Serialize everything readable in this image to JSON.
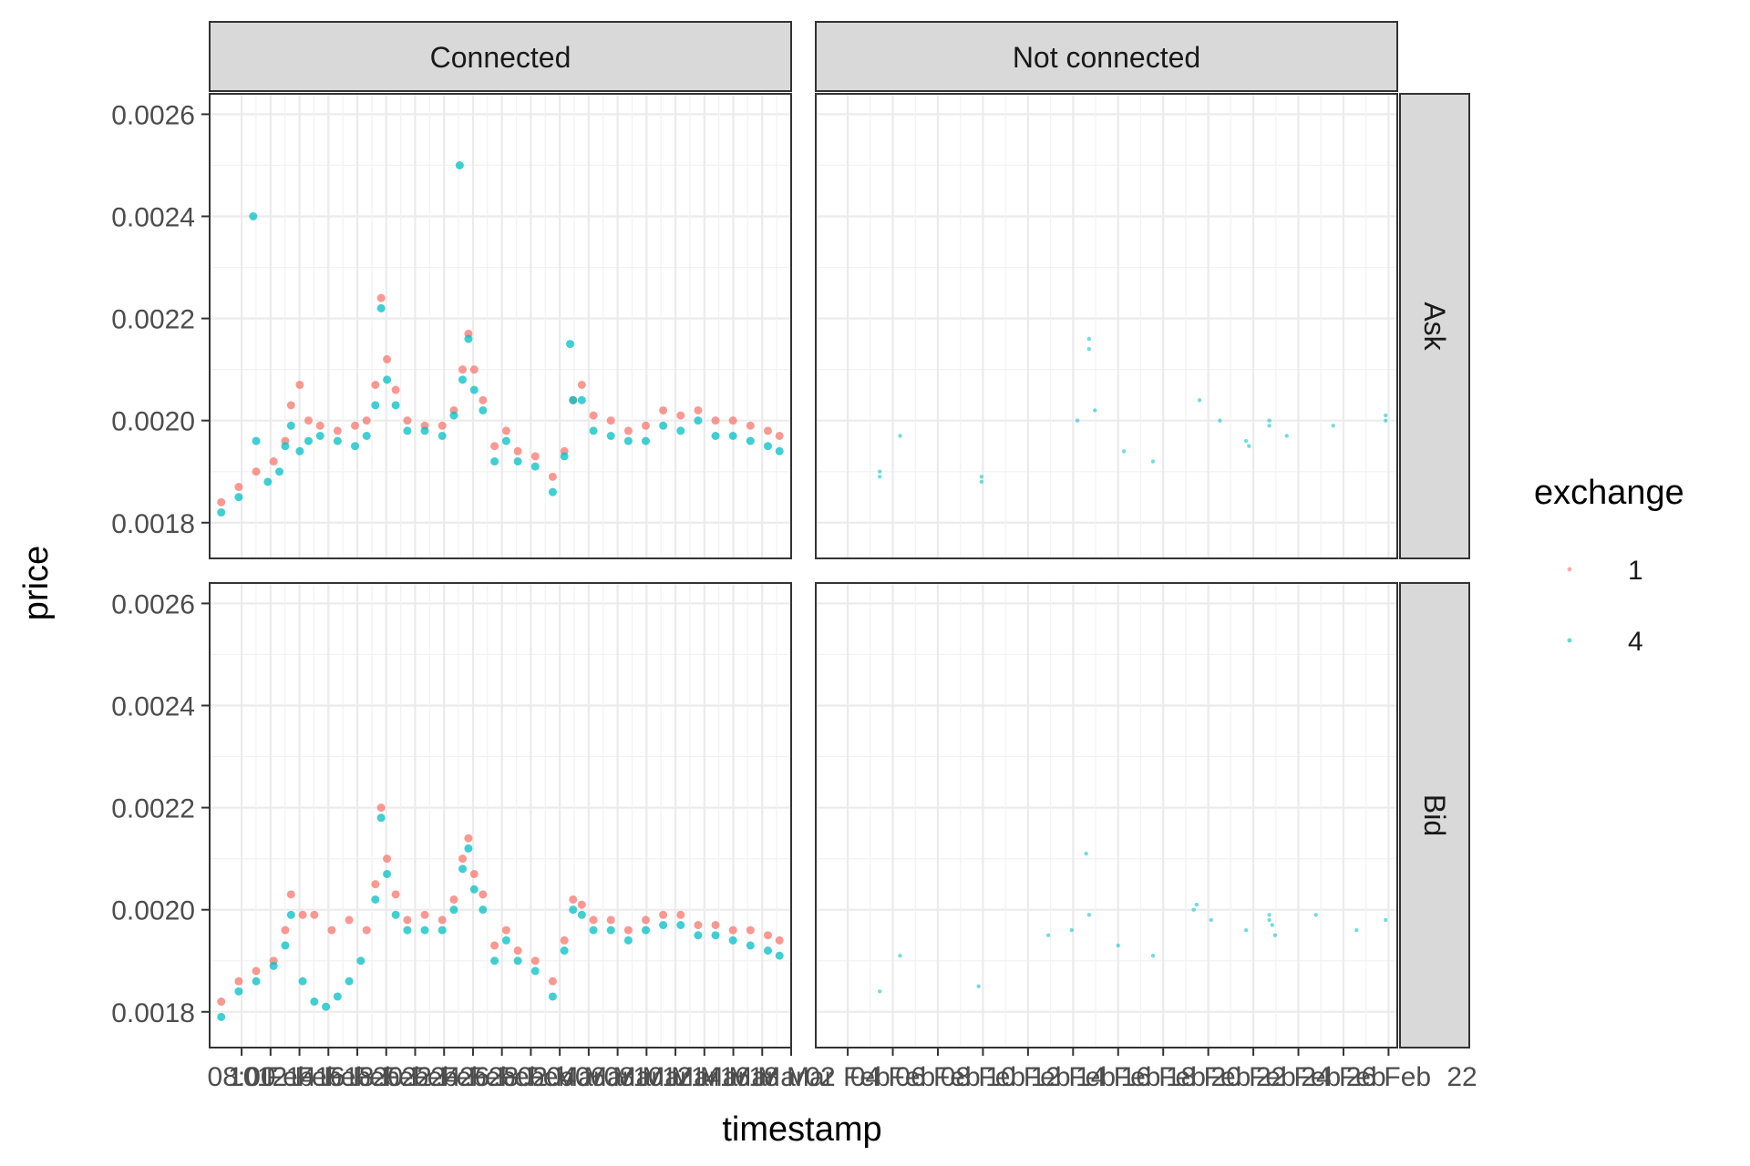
{
  "chart_data": {
    "type": "scatter",
    "facets": {
      "columns": [
        "Connected",
        "Not connected"
      ],
      "rows": [
        "Ask",
        "Bid"
      ]
    },
    "xlabel": "timestamp",
    "ylabel": "price",
    "ylim": [
      0.00173,
      0.00264
    ],
    "y_ticks": [
      "0.0018",
      "0.0020",
      "0.0022",
      "0.0024",
      "0.0026"
    ],
    "x_tick_labels_connected": [
      "08:00",
      "10 Feb",
      "12 Feb",
      "14 Feb",
      "16 Feb",
      "18 Feb",
      "20 Feb",
      "22 Feb",
      "24 Feb",
      "26 Feb",
      "28 Feb",
      "02 Mar",
      "04 Mar",
      "06 Mar",
      "08 Mar",
      "10 Mar",
      "12 Mar",
      "14 Mar",
      "16 Mar",
      "18 Mar"
    ],
    "x_tick_labels_not_connected": [
      "02 Feb",
      "04 Feb",
      "06 Feb",
      "08 Feb",
      "10 Feb",
      "12 Feb",
      "14 Feb",
      "16 Feb",
      "18 Feb",
      "20 Feb",
      "22 Feb",
      "24 Feb",
      "26 Feb"
    ],
    "x_tick_label_last": "22",
    "legend": {
      "title": "exchange",
      "position": "right",
      "entries": [
        {
          "label": "1",
          "color": "#F8766D"
        },
        {
          "label": "4",
          "color": "#00BFC4"
        }
      ]
    },
    "grid": true,
    "series": [
      {
        "name": "1",
        "color": "#F8766D",
        "panels": {
          "Connected-Ask": [
            [
              0.02,
              0.00184
            ],
            [
              0.05,
              0.00187
            ],
            [
              0.08,
              0.0019
            ],
            [
              0.11,
              0.00192
            ],
            [
              0.13,
              0.00196
            ],
            [
              0.14,
              0.00203
            ],
            [
              0.155,
              0.00207
            ],
            [
              0.17,
              0.002
            ],
            [
              0.19,
              0.00199
            ],
            [
              0.22,
              0.00198
            ],
            [
              0.25,
              0.00199
            ],
            [
              0.27,
              0.002
            ],
            [
              0.285,
              0.00207
            ],
            [
              0.295,
              0.00224
            ],
            [
              0.305,
              0.00212
            ],
            [
              0.32,
              0.00206
            ],
            [
              0.34,
              0.002
            ],
            [
              0.37,
              0.00199
            ],
            [
              0.4,
              0.00199
            ],
            [
              0.42,
              0.00202
            ],
            [
              0.435,
              0.0021
            ],
            [
              0.445,
              0.00217
            ],
            [
              0.455,
              0.0021
            ],
            [
              0.47,
              0.00204
            ],
            [
              0.49,
              0.00195
            ],
            [
              0.51,
              0.00198
            ],
            [
              0.53,
              0.00194
            ],
            [
              0.56,
              0.00193
            ],
            [
              0.59,
              0.00189
            ],
            [
              0.61,
              0.00194
            ],
            [
              0.625,
              0.00204
            ],
            [
              0.64,
              0.00207
            ],
            [
              0.66,
              0.00201
            ],
            [
              0.69,
              0.002
            ],
            [
              0.72,
              0.00198
            ],
            [
              0.75,
              0.00199
            ],
            [
              0.78,
              0.00202
            ],
            [
              0.81,
              0.00201
            ],
            [
              0.84,
              0.00202
            ],
            [
              0.87,
              0.002
            ],
            [
              0.9,
              0.002
            ],
            [
              0.93,
              0.00199
            ],
            [
              0.96,
              0.00198
            ],
            [
              0.98,
              0.00197
            ]
          ],
          "Connected-Bid": [
            [
              0.02,
              0.00182
            ],
            [
              0.05,
              0.00186
            ],
            [
              0.08,
              0.00188
            ],
            [
              0.11,
              0.0019
            ],
            [
              0.13,
              0.00196
            ],
            [
              0.14,
              0.00203
            ],
            [
              0.16,
              0.00199
            ],
            [
              0.18,
              0.00199
            ],
            [
              0.21,
              0.00196
            ],
            [
              0.24,
              0.00198
            ],
            [
              0.27,
              0.00196
            ],
            [
              0.285,
              0.00205
            ],
            [
              0.295,
              0.0022
            ],
            [
              0.305,
              0.0021
            ],
            [
              0.32,
              0.00203
            ],
            [
              0.34,
              0.00198
            ],
            [
              0.37,
              0.00199
            ],
            [
              0.4,
              0.00198
            ],
            [
              0.42,
              0.00202
            ],
            [
              0.435,
              0.0021
            ],
            [
              0.445,
              0.00214
            ],
            [
              0.455,
              0.00207
            ],
            [
              0.47,
              0.00203
            ],
            [
              0.49,
              0.00193
            ],
            [
              0.51,
              0.00196
            ],
            [
              0.53,
              0.00192
            ],
            [
              0.56,
              0.0019
            ],
            [
              0.59,
              0.00186
            ],
            [
              0.61,
              0.00194
            ],
            [
              0.625,
              0.00202
            ],
            [
              0.64,
              0.00201
            ],
            [
              0.66,
              0.00198
            ],
            [
              0.69,
              0.00198
            ],
            [
              0.72,
              0.00196
            ],
            [
              0.75,
              0.00198
            ],
            [
              0.78,
              0.00199
            ],
            [
              0.81,
              0.00199
            ],
            [
              0.84,
              0.00197
            ],
            [
              0.87,
              0.00197
            ],
            [
              0.9,
              0.00196
            ],
            [
              0.93,
              0.00196
            ],
            [
              0.96,
              0.00195
            ],
            [
              0.98,
              0.00194
            ]
          ],
          "Not connected-Ask": [],
          "Not connected-Bid": []
        }
      },
      {
        "name": "4",
        "color": "#00BFC4",
        "panels": {
          "Connected-Ask": [
            [
              0.02,
              0.00182
            ],
            [
              0.05,
              0.00185
            ],
            [
              0.075,
              0.0024
            ],
            [
              0.08,
              0.00196
            ],
            [
              0.1,
              0.00188
            ],
            [
              0.12,
              0.0019
            ],
            [
              0.13,
              0.00195
            ],
            [
              0.14,
              0.00199
            ],
            [
              0.155,
              0.00194
            ],
            [
              0.17,
              0.00196
            ],
            [
              0.19,
              0.00197
            ],
            [
              0.22,
              0.00196
            ],
            [
              0.25,
              0.00195
            ],
            [
              0.27,
              0.00197
            ],
            [
              0.285,
              0.00203
            ],
            [
              0.295,
              0.00222
            ],
            [
              0.305,
              0.00208
            ],
            [
              0.32,
              0.00203
            ],
            [
              0.34,
              0.00198
            ],
            [
              0.37,
              0.00198
            ],
            [
              0.4,
              0.00197
            ],
            [
              0.42,
              0.00201
            ],
            [
              0.43,
              0.0025
            ],
            [
              0.435,
              0.00208
            ],
            [
              0.445,
              0.00216
            ],
            [
              0.455,
              0.00206
            ],
            [
              0.47,
              0.00202
            ],
            [
              0.49,
              0.00192
            ],
            [
              0.51,
              0.00196
            ],
            [
              0.53,
              0.00192
            ],
            [
              0.56,
              0.00191
            ],
            [
              0.59,
              0.00186
            ],
            [
              0.61,
              0.00193
            ],
            [
              0.62,
              0.00215
            ],
            [
              0.625,
              0.00204
            ],
            [
              0.64,
              0.00204
            ],
            [
              0.66,
              0.00198
            ],
            [
              0.69,
              0.00197
            ],
            [
              0.72,
              0.00196
            ],
            [
              0.75,
              0.00196
            ],
            [
              0.78,
              0.00199
            ],
            [
              0.81,
              0.00198
            ],
            [
              0.84,
              0.002
            ],
            [
              0.87,
              0.00197
            ],
            [
              0.9,
              0.00197
            ],
            [
              0.93,
              0.00196
            ],
            [
              0.96,
              0.00195
            ],
            [
              0.98,
              0.00194
            ]
          ],
          "Connected-Bid": [
            [
              0.02,
              0.00179
            ],
            [
              0.05,
              0.00184
            ],
            [
              0.08,
              0.00186
            ],
            [
              0.11,
              0.00189
            ],
            [
              0.13,
              0.00193
            ],
            [
              0.14,
              0.00199
            ],
            [
              0.16,
              0.00186
            ],
            [
              0.18,
              0.00182
            ],
            [
              0.2,
              0.00181
            ],
            [
              0.22,
              0.00183
            ],
            [
              0.24,
              0.00186
            ],
            [
              0.26,
              0.0019
            ],
            [
              0.285,
              0.00202
            ],
            [
              0.295,
              0.00218
            ],
            [
              0.305,
              0.00207
            ],
            [
              0.32,
              0.00199
            ],
            [
              0.34,
              0.00196
            ],
            [
              0.37,
              0.00196
            ],
            [
              0.4,
              0.00196
            ],
            [
              0.42,
              0.002
            ],
            [
              0.435,
              0.00208
            ],
            [
              0.445,
              0.00212
            ],
            [
              0.455,
              0.00204
            ],
            [
              0.47,
              0.002
            ],
            [
              0.49,
              0.0019
            ],
            [
              0.51,
              0.00194
            ],
            [
              0.53,
              0.0019
            ],
            [
              0.56,
              0.00188
            ],
            [
              0.59,
              0.00183
            ],
            [
              0.61,
              0.00192
            ],
            [
              0.625,
              0.002
            ],
            [
              0.64,
              0.00199
            ],
            [
              0.66,
              0.00196
            ],
            [
              0.69,
              0.00196
            ],
            [
              0.72,
              0.00194
            ],
            [
              0.75,
              0.00196
            ],
            [
              0.78,
              0.00197
            ],
            [
              0.81,
              0.00197
            ],
            [
              0.84,
              0.00195
            ],
            [
              0.87,
              0.00195
            ],
            [
              0.9,
              0.00194
            ],
            [
              0.93,
              0.00193
            ],
            [
              0.96,
              0.00192
            ],
            [
              0.98,
              0.00191
            ]
          ],
          "Not connected-Ask": [
            [
              0.11,
              0.0019
            ],
            [
              0.11,
              0.00189
            ],
            [
              0.145,
              0.00197
            ],
            [
              0.285,
              0.00188
            ],
            [
              0.285,
              0.00189
            ],
            [
              0.45,
              0.002
            ],
            [
              0.47,
              0.00214
            ],
            [
              0.47,
              0.00216
            ],
            [
              0.48,
              0.00202
            ],
            [
              0.53,
              0.00194
            ],
            [
              0.58,
              0.00192
            ],
            [
              0.66,
              0.00204
            ],
            [
              0.695,
              0.002
            ],
            [
              0.74,
              0.00196
            ],
            [
              0.745,
              0.00195
            ],
            [
              0.78,
              0.002
            ],
            [
              0.78,
              0.00199
            ],
            [
              0.81,
              0.00197
            ],
            [
              0.89,
              0.00199
            ],
            [
              0.98,
              0.002
            ],
            [
              0.98,
              0.00201
            ]
          ],
          "Not connected-Bid": [
            [
              0.11,
              0.00184
            ],
            [
              0.145,
              0.00191
            ],
            [
              0.28,
              0.00185
            ],
            [
              0.4,
              0.00195
            ],
            [
              0.44,
              0.00196
            ],
            [
              0.465,
              0.00211
            ],
            [
              0.47,
              0.00199
            ],
            [
              0.52,
              0.00193
            ],
            [
              0.58,
              0.00191
            ],
            [
              0.65,
              0.002
            ],
            [
              0.655,
              0.00201
            ],
            [
              0.68,
              0.00198
            ],
            [
              0.74,
              0.00196
            ],
            [
              0.78,
              0.00199
            ],
            [
              0.78,
              0.00198
            ],
            [
              0.785,
              0.00197
            ],
            [
              0.79,
              0.00195
            ],
            [
              0.86,
              0.00199
            ],
            [
              0.93,
              0.00196
            ],
            [
              0.98,
              0.00198
            ]
          ]
        }
      }
    ]
  }
}
